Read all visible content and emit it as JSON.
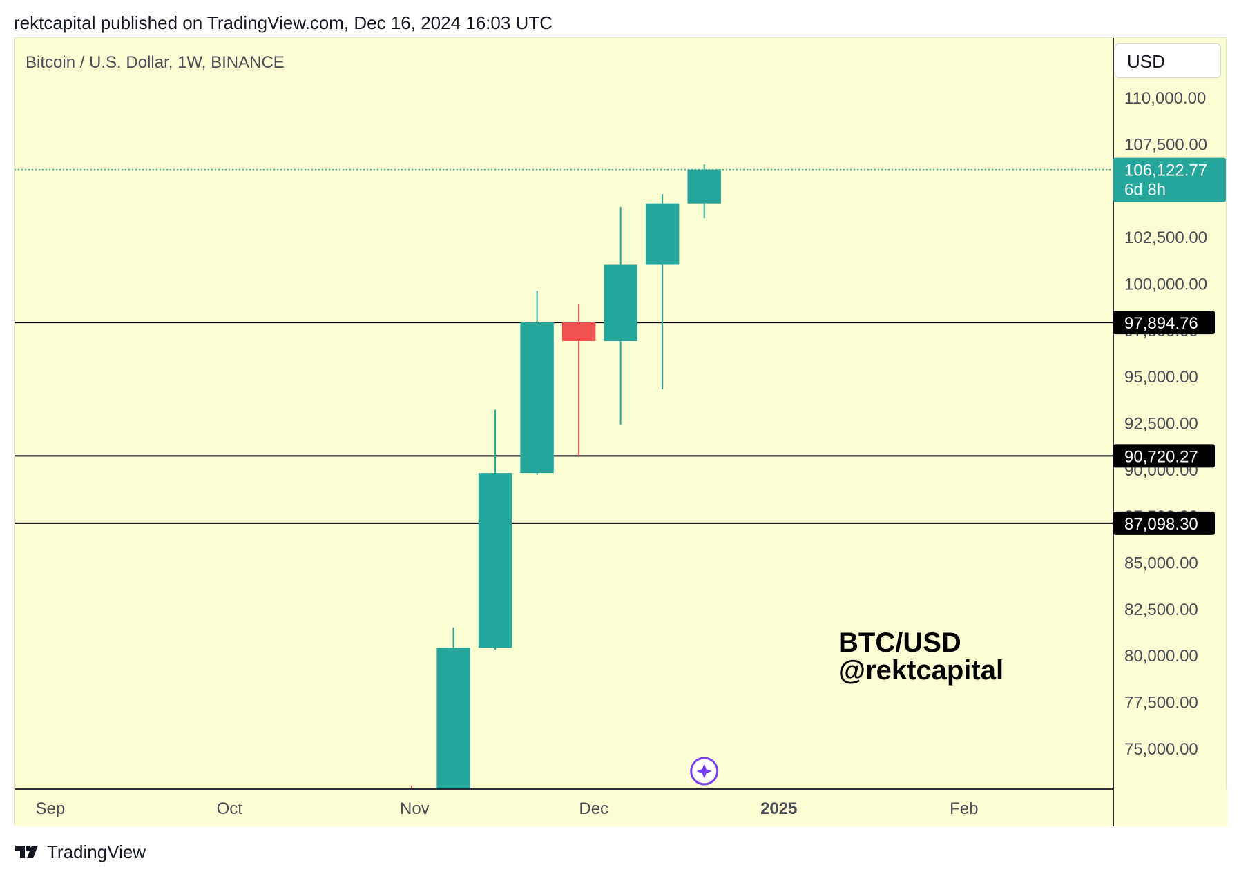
{
  "header": {
    "published_text": "rektcapital published on TradingView.com, Dec 16, 2024 16:03 UTC"
  },
  "chart": {
    "symbol_title": "Bitcoin / U.S. Dollar, 1W, BINANCE",
    "currency": "USD",
    "watermark_line1": "BTC/USD",
    "watermark_line2": "@rektcapital",
    "last_price_label": "106,122.77",
    "countdown_label": "6d 8h"
  },
  "footer": {
    "brand": "TradingView",
    "logo_icon": "tradingview-logo-icon"
  },
  "colors": {
    "background": "#fefed5",
    "up": "#26a69a",
    "down": "#ef5350",
    "level_line": "#000000",
    "price_marker": "#26a69a",
    "event_marker": "#7b3ff2"
  },
  "chart_data": {
    "type": "candlestick",
    "title": "Bitcoin / U.S. Dollar, 1W, BINANCE",
    "timeframe": "1W",
    "exchange": "BINANCE",
    "x_labels": [
      {
        "date": "2024-09-01",
        "label": "Sep",
        "bold": false
      },
      {
        "date": "2024-10-01",
        "label": "Oct",
        "bold": false
      },
      {
        "date": "2024-11-01",
        "label": "Nov",
        "bold": false
      },
      {
        "date": "2024-12-01",
        "label": "Dec",
        "bold": false
      },
      {
        "date": "2025-01-01",
        "label": "2025",
        "bold": true
      },
      {
        "date": "2025-02-01",
        "label": "Feb",
        "bold": false
      }
    ],
    "x_range": [
      "2024-08-26",
      "2025-02-26"
    ],
    "y_range": [
      72800,
      113200
    ],
    "y_ticks": [
      75000,
      77500,
      80000,
      82500,
      85000,
      87500,
      90000,
      92500,
      95000,
      97500,
      100000,
      102500,
      107500,
      110000
    ],
    "y_tick_labels": [
      "75,000.00",
      "77,500.00",
      "80,000.00",
      "82,500.00",
      "85,000.00",
      "87,500.00",
      "90,000.00",
      "92,500.00",
      "95,000.00",
      "97,500.00",
      "100,000.00",
      "102,500.00",
      "107,500.00",
      "110,000.00"
    ],
    "candles": [
      {
        "date": "2024-10-28",
        "open": 69400,
        "high": 73000,
        "low": 66800,
        "close": 68000
      },
      {
        "date": "2024-11-04",
        "open": 68000,
        "high": 81500,
        "low": 66800,
        "close": 80400
      },
      {
        "date": "2024-11-11",
        "open": 80400,
        "high": 93200,
        "low": 80300,
        "close": 89800
      },
      {
        "date": "2024-11-18",
        "open": 89800,
        "high": 99600,
        "low": 89700,
        "close": 97900
      },
      {
        "date": "2024-11-25",
        "open": 97900,
        "high": 98900,
        "low": 90720,
        "close": 96900
      },
      {
        "date": "2024-12-02",
        "open": 96900,
        "high": 104100,
        "low": 92400,
        "close": 101000
      },
      {
        "date": "2024-12-09",
        "open": 101000,
        "high": 104800,
        "low": 94300,
        "close": 104300
      },
      {
        "date": "2024-12-16",
        "open": 104300,
        "high": 106400,
        "low": 103500,
        "close": 106122.77
      }
    ],
    "horizontal_levels": [
      {
        "value": 97894.76,
        "label": "97,894.76"
      },
      {
        "value": 90720.27,
        "label": "90,720.27"
      },
      {
        "value": 87098.3,
        "label": "87,098.30"
      }
    ],
    "last_price": {
      "value": 106122.77,
      "label": "106,122.77",
      "countdown": "6d 8h"
    },
    "event_marker": {
      "date": "2024-12-16",
      "icon": "sparkle-event-icon"
    },
    "grid": false,
    "price_axis_side": "right"
  }
}
